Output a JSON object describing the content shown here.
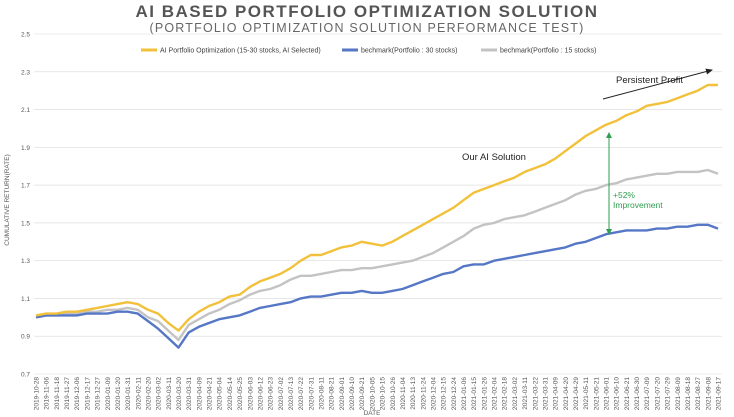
{
  "chart_data": {
    "type": "line",
    "title": "AI BASED PORTFOLIO OPTIMIZATION SOLUTION",
    "subtitle": "(PORTFOLIO OPTIMIZATION SOLUTION PERFORMANCE TEST)",
    "xlabel": "DATE",
    "ylabel": "CUMULATIVE RETURN(RATE)",
    "ylim": [
      0.7,
      2.5
    ],
    "yticks": [
      "0.7",
      "0.9",
      "1.1",
      "1.3",
      "1.5",
      "1.7",
      "1.9",
      "2.1",
      "2.3",
      "2.5"
    ],
    "grid": true,
    "legend_position": "top",
    "x": [
      "2019-10-28",
      "2019-11-06",
      "2019-11-18",
      "2019-11-27",
      "2019-12-06",
      "2019-12-17",
      "2019-12-27",
      "2020-01-09",
      "2020-01-20",
      "2020-01-31",
      "2020-02-11",
      "2020-02-20",
      "2020-03-02",
      "2020-03-11",
      "2020-03-20",
      "2020-03-31",
      "2020-04-09",
      "2020-04-21",
      "2020-05-04",
      "2020-05-14",
      "2020-05-25",
      "2020-06-03",
      "2020-06-12",
      "2020-06-23",
      "2020-07-02",
      "2020-07-13",
      "2020-07-22",
      "2020-07-31",
      "2020-08-11",
      "2020-08-21",
      "2020-09-01",
      "2020-09-10",
      "2020-09-21",
      "2020-10-05",
      "2020-10-15",
      "2020-10-26",
      "2020-11-04",
      "2020-11-13",
      "2020-11-24",
      "2020-12-04",
      "2020-12-15",
      "2020-12-24",
      "2021-01-06",
      "2021-01-15",
      "2021-01-26",
      "2021-02-04",
      "2021-02-18",
      "2021-03-02",
      "2021-03-11",
      "2021-03-22",
      "2021-03-31",
      "2021-04-09",
      "2021-04-20",
      "2021-04-29",
      "2021-05-11",
      "2021-05-21",
      "2021-06-01",
      "2021-06-10",
      "2021-06-21",
      "2021-06-30",
      "2021-07-09",
      "2021-07-20",
      "2021-07-29",
      "2021-08-09",
      "2021-08-18",
      "2021-08-27",
      "2021-09-08",
      "2021-09-17"
    ],
    "series": [
      {
        "name": "AI Portfolio Optimization (15-30 stocks, AI Selected)",
        "color": "#f2c13b",
        "values": [
          1.01,
          1.02,
          1.02,
          1.03,
          1.03,
          1.04,
          1.05,
          1.06,
          1.07,
          1.08,
          1.07,
          1.04,
          1.02,
          0.97,
          0.93,
          0.99,
          1.03,
          1.06,
          1.08,
          1.11,
          1.12,
          1.16,
          1.19,
          1.21,
          1.23,
          1.26,
          1.3,
          1.33,
          1.33,
          1.35,
          1.37,
          1.38,
          1.4,
          1.39,
          1.38,
          1.4,
          1.43,
          1.46,
          1.49,
          1.52,
          1.55,
          1.58,
          1.62,
          1.66,
          1.68,
          1.7,
          1.72,
          1.74,
          1.77,
          1.79,
          1.81,
          1.84,
          1.88,
          1.92,
          1.96,
          1.99,
          2.02,
          2.04,
          2.07,
          2.09,
          2.12,
          2.13,
          2.14,
          2.16,
          2.18,
          2.2,
          2.23,
          2.23
        ]
      },
      {
        "name": "bechmark(Portfolio : 30 stocks)",
        "color": "#5577c6",
        "values": [
          1.0,
          1.01,
          1.01,
          1.01,
          1.01,
          1.02,
          1.02,
          1.02,
          1.03,
          1.03,
          1.02,
          0.98,
          0.94,
          0.89,
          0.84,
          0.92,
          0.95,
          0.97,
          0.99,
          1.0,
          1.01,
          1.03,
          1.05,
          1.06,
          1.07,
          1.08,
          1.1,
          1.11,
          1.11,
          1.12,
          1.13,
          1.13,
          1.14,
          1.13,
          1.13,
          1.14,
          1.15,
          1.17,
          1.19,
          1.21,
          1.23,
          1.24,
          1.27,
          1.28,
          1.28,
          1.3,
          1.31,
          1.32,
          1.33,
          1.34,
          1.35,
          1.36,
          1.37,
          1.39,
          1.4,
          1.42,
          1.44,
          1.45,
          1.46,
          1.46,
          1.46,
          1.47,
          1.47,
          1.48,
          1.48,
          1.49,
          1.49,
          1.47
        ]
      },
      {
        "name": "bechmark(Portfolio : 15 stocks)",
        "color": "#c3c3c3",
        "values": [
          1.0,
          1.01,
          1.01,
          1.02,
          1.02,
          1.03,
          1.03,
          1.04,
          1.04,
          1.05,
          1.04,
          1.0,
          0.98,
          0.93,
          0.88,
          0.96,
          0.99,
          1.02,
          1.04,
          1.07,
          1.09,
          1.12,
          1.14,
          1.15,
          1.17,
          1.2,
          1.22,
          1.22,
          1.23,
          1.24,
          1.25,
          1.25,
          1.26,
          1.26,
          1.27,
          1.28,
          1.29,
          1.3,
          1.32,
          1.34,
          1.37,
          1.4,
          1.43,
          1.47,
          1.49,
          1.5,
          1.52,
          1.53,
          1.54,
          1.56,
          1.58,
          1.6,
          1.62,
          1.65,
          1.67,
          1.68,
          1.7,
          1.71,
          1.73,
          1.74,
          1.75,
          1.76,
          1.76,
          1.77,
          1.77,
          1.77,
          1.78,
          1.76
        ]
      }
    ],
    "annotations": {
      "persistent_profit": "Persistent Profit",
      "our_ai_solution": "Our AI Solution",
      "improvement_pct": "+52%",
      "improvement_word": "Improvement"
    }
  }
}
